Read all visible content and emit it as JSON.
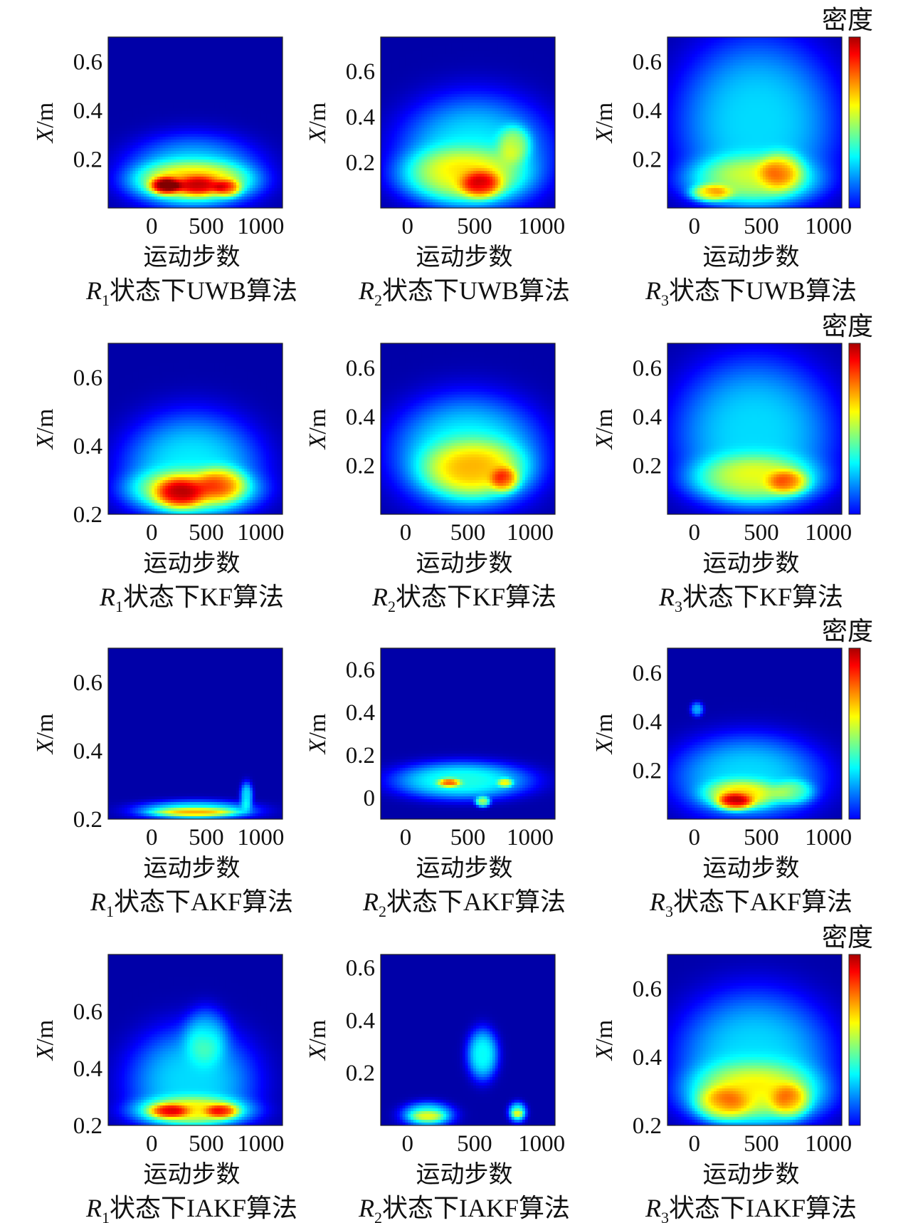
{
  "chart_data": {
    "type": "heatmap",
    "grid": "off",
    "colorbar": {
      "label": "密度",
      "colormap": "jet",
      "placement": "right of third column"
    },
    "panels": [
      {
        "row": 0,
        "col": 0,
        "caption_var": "R",
        "caption_sub": "1",
        "caption_rest": "状态下UWB算法",
        "xlabel": "运动步数",
        "ylabel": "X/m",
        "xlim": [
          -400,
          1200
        ],
        "ylim": [
          0,
          0.7
        ],
        "xticks": [
          {
            "v": 0,
            "t": "0"
          },
          {
            "v": 500,
            "t": "500"
          },
          {
            "v": 1000,
            "t": "1000"
          }
        ],
        "yticks": [
          {
            "v": 0.2,
            "t": "0.2"
          },
          {
            "v": 0.4,
            "t": "0.4"
          },
          {
            "v": 0.6,
            "t": "0.6"
          }
        ],
        "bg": 0.04,
        "blobs": [
          {
            "x": 380,
            "y": 0.14,
            "sx": 640,
            "sy": 0.16,
            "v": 0.3
          },
          {
            "x": 380,
            "y": 0.11,
            "sx": 560,
            "sy": 0.08,
            "v": 0.34
          },
          {
            "x": 120,
            "y": 0.09,
            "sx": 140,
            "sy": 0.035,
            "v": 0.42
          },
          {
            "x": 430,
            "y": 0.09,
            "sx": 200,
            "sy": 0.04,
            "v": 0.26
          },
          {
            "x": 700,
            "y": 0.08,
            "sx": 120,
            "sy": 0.035,
            "v": 0.28
          }
        ]
      },
      {
        "row": 0,
        "col": 1,
        "caption_var": "R",
        "caption_sub": "2",
        "caption_rest": "状态下UWB算法",
        "xlabel": "运动步数",
        "ylabel": "X/m",
        "xlim": [
          -200,
          1100
        ],
        "ylim": [
          0,
          0.75
        ],
        "xticks": [
          {
            "v": 0,
            "t": "0"
          },
          {
            "v": 500,
            "t": "500"
          },
          {
            "v": 1000,
            "t": "1000"
          }
        ],
        "yticks": [
          {
            "v": 0.2,
            "t": "0.2"
          },
          {
            "v": 0.4,
            "t": "0.4"
          },
          {
            "v": 0.6,
            "t": "0.6"
          }
        ],
        "bg": 0.04,
        "blobs": [
          {
            "x": 500,
            "y": 0.24,
            "sx": 580,
            "sy": 0.26,
            "v": 0.32
          },
          {
            "x": 400,
            "y": 0.14,
            "sx": 480,
            "sy": 0.12,
            "v": 0.3
          },
          {
            "x": 550,
            "y": 0.1,
            "sx": 150,
            "sy": 0.06,
            "v": 0.3
          },
          {
            "x": 800,
            "y": 0.28,
            "sx": 120,
            "sy": 0.08,
            "v": 0.22
          }
        ]
      },
      {
        "row": 0,
        "col": 2,
        "caption_var": "R",
        "caption_sub": "3",
        "caption_rest": "状态下UWB算法",
        "xlabel": "运动步数",
        "ylabel": "X/m",
        "xlim": [
          -200,
          1100
        ],
        "ylim": [
          0,
          0.7
        ],
        "xticks": [
          {
            "v": 0,
            "t": "0"
          },
          {
            "v": 500,
            "t": "500"
          },
          {
            "v": 1000,
            "t": "1000"
          }
        ],
        "yticks": [
          {
            "v": 0.2,
            "t": "0.2"
          },
          {
            "v": 0.4,
            "t": "0.4"
          },
          {
            "v": 0.6,
            "t": "0.6"
          }
        ],
        "bg": 0.04,
        "blobs": [
          {
            "x": 470,
            "y": 0.35,
            "sx": 620,
            "sy": 0.36,
            "v": 0.3
          },
          {
            "x": 420,
            "y": 0.11,
            "sx": 520,
            "sy": 0.1,
            "v": 0.3
          },
          {
            "x": 120,
            "y": 0.06,
            "sx": 150,
            "sy": 0.035,
            "v": 0.32
          },
          {
            "x": 650,
            "y": 0.15,
            "sx": 160,
            "sy": 0.08,
            "v": 0.22
          }
        ]
      },
      {
        "row": 1,
        "col": 0,
        "caption_var": "R",
        "caption_sub": "1",
        "caption_rest": "状态下KF算法",
        "xlabel": "运动步数",
        "ylabel": "X/m",
        "xlim": [
          -400,
          1200
        ],
        "ylim": [
          0.2,
          0.7
        ],
        "xticks": [
          {
            "v": 0,
            "t": "0"
          },
          {
            "v": 500,
            "t": "500"
          },
          {
            "v": 1000,
            "t": "1000"
          }
        ],
        "yticks": [
          {
            "v": 0.2,
            "t": "0.2"
          },
          {
            "v": 0.4,
            "t": "0.4"
          },
          {
            "v": 0.6,
            "t": "0.6"
          }
        ],
        "bg": 0.04,
        "blobs": [
          {
            "x": 370,
            "y": 0.33,
            "sx": 650,
            "sy": 0.17,
            "v": 0.32
          },
          {
            "x": 370,
            "y": 0.27,
            "sx": 600,
            "sy": 0.06,
            "v": 0.3
          },
          {
            "x": 250,
            "y": 0.26,
            "sx": 220,
            "sy": 0.045,
            "v": 0.3
          },
          {
            "x": 650,
            "y": 0.29,
            "sx": 220,
            "sy": 0.05,
            "v": 0.2
          }
        ]
      },
      {
        "row": 1,
        "col": 1,
        "caption_var": "R",
        "caption_sub": "2",
        "caption_rest": "状态下KF算法",
        "xlabel": "运动步数",
        "ylabel": "X/m",
        "xlim": [
          -200,
          1200
        ],
        "ylim": [
          0,
          0.7
        ],
        "xticks": [
          {
            "v": 0,
            "t": "0"
          },
          {
            "v": 500,
            "t": "500"
          },
          {
            "v": 1000,
            "t": "1000"
          }
        ],
        "yticks": [
          {
            "v": 0.2,
            "t": "0.2"
          },
          {
            "v": 0.4,
            "t": "0.4"
          },
          {
            "v": 0.6,
            "t": "0.6"
          }
        ],
        "bg": 0.04,
        "blobs": [
          {
            "x": 500,
            "y": 0.25,
            "sx": 620,
            "sy": 0.24,
            "v": 0.34
          },
          {
            "x": 550,
            "y": 0.18,
            "sx": 420,
            "sy": 0.12,
            "v": 0.32
          },
          {
            "x": 800,
            "y": 0.14,
            "sx": 110,
            "sy": 0.05,
            "v": 0.26
          }
        ]
      },
      {
        "row": 1,
        "col": 2,
        "caption_var": "R",
        "caption_sub": "3",
        "caption_rest": "状态下KF算法",
        "xlabel": "运动步数",
        "ylabel": "X/m",
        "xlim": [
          -200,
          1100
        ],
        "ylim": [
          0,
          0.7
        ],
        "xticks": [
          {
            "v": 0,
            "t": "0"
          },
          {
            "v": 500,
            "t": "500"
          },
          {
            "v": 1000,
            "t": "1000"
          }
        ],
        "yticks": [
          {
            "v": 0.2,
            "t": "0.2"
          },
          {
            "v": 0.4,
            "t": "0.4"
          },
          {
            "v": 0.6,
            "t": "0.6"
          }
        ],
        "bg": 0.04,
        "blobs": [
          {
            "x": 450,
            "y": 0.33,
            "sx": 620,
            "sy": 0.32,
            "v": 0.3
          },
          {
            "x": 450,
            "y": 0.14,
            "sx": 500,
            "sy": 0.1,
            "v": 0.3
          },
          {
            "x": 700,
            "y": 0.13,
            "sx": 150,
            "sy": 0.05,
            "v": 0.26
          }
        ]
      },
      {
        "row": 2,
        "col": 0,
        "caption_var": "R",
        "caption_sub": "1",
        "caption_rest": "状态下AKF算法",
        "xlabel": "运动步数",
        "ylabel": "X/m",
        "xlim": [
          -400,
          1200
        ],
        "ylim": [
          0.2,
          0.7
        ],
        "xticks": [
          {
            "v": 0,
            "t": "0"
          },
          {
            "v": 500,
            "t": "500"
          },
          {
            "v": 1000,
            "t": "1000"
          }
        ],
        "yticks": [
          {
            "v": 0.2,
            "t": "0.2"
          },
          {
            "v": 0.4,
            "t": "0.4"
          },
          {
            "v": 0.6,
            "t": "0.6"
          }
        ],
        "bg": 0.04,
        "blobs": [
          {
            "x": 400,
            "y": 0.225,
            "sx": 560,
            "sy": 0.03,
            "v": 0.36
          },
          {
            "x": 400,
            "y": 0.22,
            "sx": 380,
            "sy": 0.012,
            "v": 0.3
          },
          {
            "x": 870,
            "y": 0.27,
            "sx": 60,
            "sy": 0.04,
            "v": 0.3
          }
        ]
      },
      {
        "row": 2,
        "col": 1,
        "caption_var": "R",
        "caption_sub": "2",
        "caption_rest": "状态下AKF算法",
        "xlabel": "运动步数",
        "ylabel": "X/m",
        "xlim": [
          -200,
          1200
        ],
        "ylim": [
          -0.1,
          0.7
        ],
        "xticks": [
          {
            "v": 0,
            "t": "0"
          },
          {
            "v": 500,
            "t": "500"
          },
          {
            "v": 1000,
            "t": "1000"
          }
        ],
        "yticks": [
          {
            "v": 0,
            "t": "0"
          },
          {
            "v": 0.2,
            "t": "0.2"
          },
          {
            "v": 0.4,
            "t": "0.4"
          },
          {
            "v": 0.6,
            "t": "0.6"
          }
        ],
        "bg": 0.04,
        "blobs": [
          {
            "x": 450,
            "y": 0.08,
            "sx": 560,
            "sy": 0.09,
            "v": 0.36
          },
          {
            "x": 350,
            "y": 0.07,
            "sx": 90,
            "sy": 0.02,
            "v": 0.38
          },
          {
            "x": 620,
            "y": -0.02,
            "sx": 60,
            "sy": 0.025,
            "v": 0.4
          },
          {
            "x": 800,
            "y": 0.07,
            "sx": 60,
            "sy": 0.02,
            "v": 0.3
          }
        ]
      },
      {
        "row": 2,
        "col": 2,
        "caption_var": "R",
        "caption_sub": "3",
        "caption_rest": "状态下AKF算法",
        "xlabel": "运动步数",
        "ylabel": "X/m",
        "xlim": [
          -200,
          1100
        ],
        "ylim": [
          0,
          0.7
        ],
        "xticks": [
          {
            "v": 0,
            "t": "0"
          },
          {
            "v": 500,
            "t": "500"
          },
          {
            "v": 1000,
            "t": "1000"
          }
        ],
        "yticks": [
          {
            "v": 0.2,
            "t": "0.2"
          },
          {
            "v": 0.4,
            "t": "0.4"
          },
          {
            "v": 0.6,
            "t": "0.6"
          }
        ],
        "bg": 0.04,
        "blobs": [
          {
            "x": 400,
            "y": 0.17,
            "sx": 580,
            "sy": 0.18,
            "v": 0.3
          },
          {
            "x": 350,
            "y": 0.1,
            "sx": 280,
            "sy": 0.06,
            "v": 0.32
          },
          {
            "x": 300,
            "y": 0.07,
            "sx": 130,
            "sy": 0.035,
            "v": 0.34
          },
          {
            "x": 750,
            "y": 0.11,
            "sx": 150,
            "sy": 0.05,
            "v": 0.2
          },
          {
            "x": 20,
            "y": 0.45,
            "sx": 50,
            "sy": 0.03,
            "v": 0.25
          }
        ]
      },
      {
        "row": 3,
        "col": 0,
        "caption_var": "R",
        "caption_sub": "1",
        "caption_rest": "状态下IAKF算法",
        "xlabel": "运动步数",
        "ylabel": "X/m",
        "xlim": [
          -400,
          1200
        ],
        "ylim": [
          0.2,
          0.8
        ],
        "xticks": [
          {
            "v": 0,
            "t": "0"
          },
          {
            "v": 500,
            "t": "500"
          },
          {
            "v": 1000,
            "t": "1000"
          }
        ],
        "yticks": [
          {
            "v": 0.2,
            "t": "0.2"
          },
          {
            "v": 0.4,
            "t": "0.4"
          },
          {
            "v": 0.6,
            "t": "0.6"
          }
        ],
        "bg": 0.04,
        "blobs": [
          {
            "x": 370,
            "y": 0.35,
            "sx": 600,
            "sy": 0.2,
            "v": 0.3
          },
          {
            "x": 370,
            "y": 0.25,
            "sx": 560,
            "sy": 0.05,
            "v": 0.32
          },
          {
            "x": 150,
            "y": 0.25,
            "sx": 180,
            "sy": 0.025,
            "v": 0.3
          },
          {
            "x": 650,
            "y": 0.25,
            "sx": 150,
            "sy": 0.025,
            "v": 0.3
          },
          {
            "x": 500,
            "y": 0.52,
            "sx": 200,
            "sy": 0.1,
            "v": 0.18
          }
        ]
      },
      {
        "row": 3,
        "col": 1,
        "caption_var": "R",
        "caption_sub": "2",
        "caption_rest": "状态下IAKF算法",
        "xlabel": "运动步数",
        "ylabel": "X/m",
        "xlim": [
          -200,
          1100
        ],
        "ylim": [
          0,
          0.65
        ],
        "xticks": [
          {
            "v": 0,
            "t": "0"
          },
          {
            "v": 500,
            "t": "500"
          },
          {
            "v": 1000,
            "t": "1000"
          }
        ],
        "yticks": [
          {
            "v": 0.2,
            "t": "0.2"
          },
          {
            "v": 0.4,
            "t": "0.4"
          },
          {
            "v": 0.6,
            "t": "0.6"
          }
        ],
        "bg": 0.04,
        "blobs": [
          {
            "x": 150,
            "y": 0.04,
            "sx": 200,
            "sy": 0.05,
            "v": 0.36
          },
          {
            "x": 150,
            "y": 0.035,
            "sx": 120,
            "sy": 0.02,
            "v": 0.2
          },
          {
            "x": 560,
            "y": 0.27,
            "sx": 120,
            "sy": 0.1,
            "v": 0.34
          },
          {
            "x": 820,
            "y": 0.05,
            "sx": 70,
            "sy": 0.04,
            "v": 0.36
          },
          {
            "x": 820,
            "y": 0.045,
            "sx": 40,
            "sy": 0.015,
            "v": 0.2
          }
        ]
      },
      {
        "row": 3,
        "col": 2,
        "caption_var": "R",
        "caption_sub": "3",
        "caption_rest": "状态下IAKF算法",
        "xlabel": "运动步数",
        "ylabel": "X/m",
        "xlim": [
          -200,
          1100
        ],
        "ylim": [
          0.2,
          0.7
        ],
        "xticks": [
          {
            "v": 0,
            "t": "0"
          },
          {
            "v": 500,
            "t": "500"
          },
          {
            "v": 1000,
            "t": "1000"
          }
        ],
        "yticks": [
          {
            "v": 0.2,
            "t": "0.2"
          },
          {
            "v": 0.4,
            "t": "0.4"
          },
          {
            "v": 0.6,
            "t": "0.6"
          }
        ],
        "bg": 0.04,
        "blobs": [
          {
            "x": 450,
            "y": 0.4,
            "sx": 600,
            "sy": 0.2,
            "v": 0.3
          },
          {
            "x": 450,
            "y": 0.29,
            "sx": 540,
            "sy": 0.09,
            "v": 0.32
          },
          {
            "x": 200,
            "y": 0.26,
            "sx": 200,
            "sy": 0.05,
            "v": 0.22
          },
          {
            "x": 720,
            "y": 0.27,
            "sx": 140,
            "sy": 0.05,
            "v": 0.22
          }
        ]
      }
    ]
  }
}
